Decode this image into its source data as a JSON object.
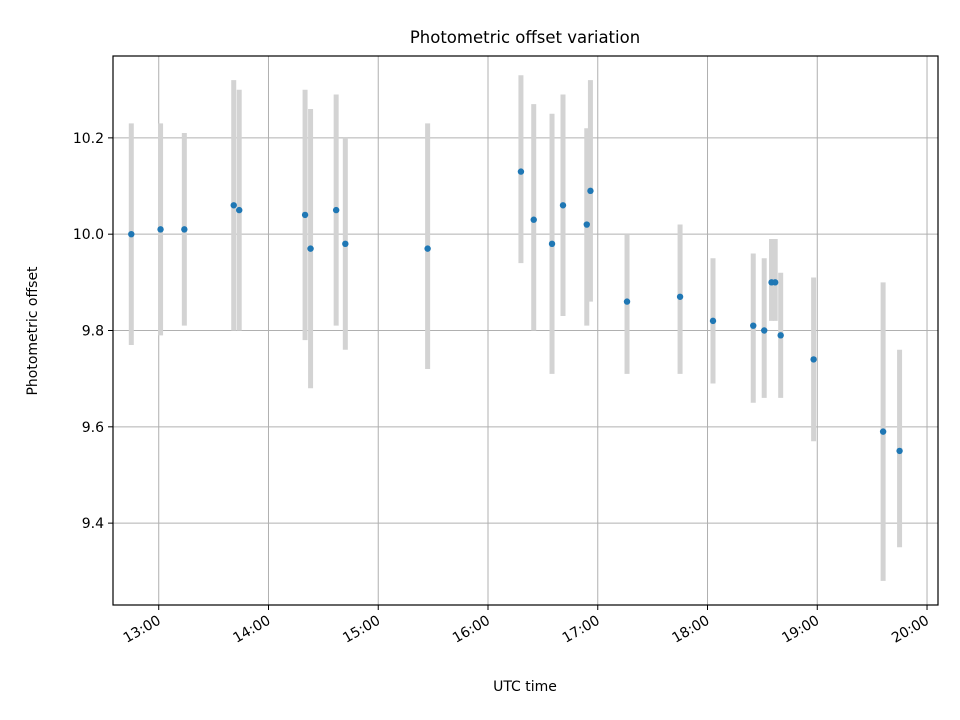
{
  "chart_data": {
    "type": "scatter",
    "title": "Photometric offset variation",
    "xlabel": "UTC time",
    "ylabel": "Photometric offset",
    "x_tick_labels": [
      "13:00",
      "14:00",
      "15:00",
      "16:00",
      "17:00",
      "18:00",
      "19:00",
      "20:00"
    ],
    "y_tick_labels": [
      "9.4",
      "9.6",
      "9.8",
      "10.0",
      "10.2"
    ],
    "xlim": [
      "12:35",
      "20:06"
    ],
    "ylim": [
      9.23,
      10.37
    ],
    "grid": true,
    "legend": "none",
    "series": [
      {
        "point_color": "#1f77b4",
        "errorbar_color": "#d3d3d3",
        "points": [
          {
            "x": "12:45",
            "y": 10.0,
            "yerr_low": 9.77,
            "yerr_high": 10.23
          },
          {
            "x": "13:01",
            "y": 10.01,
            "yerr_low": 9.79,
            "yerr_high": 10.23
          },
          {
            "x": "13:14",
            "y": 10.01,
            "yerr_low": 9.81,
            "yerr_high": 10.21
          },
          {
            "x": "13:41",
            "y": 10.06,
            "yerr_low": 9.8,
            "yerr_high": 10.32
          },
          {
            "x": "13:44",
            "y": 10.05,
            "yerr_low": 9.8,
            "yerr_high": 10.3
          },
          {
            "x": "14:20",
            "y": 10.04,
            "yerr_low": 9.78,
            "yerr_high": 10.3
          },
          {
            "x": "14:23",
            "y": 9.97,
            "yerr_low": 9.68,
            "yerr_high": 10.26
          },
          {
            "x": "14:37",
            "y": 10.05,
            "yerr_low": 9.81,
            "yerr_high": 10.29
          },
          {
            "x": "14:42",
            "y": 9.98,
            "yerr_low": 9.76,
            "yerr_high": 10.2
          },
          {
            "x": "15:27",
            "y": 9.97,
            "yerr_low": 9.72,
            "yerr_high": 10.23
          },
          {
            "x": "16:18",
            "y": 10.13,
            "yerr_low": 9.94,
            "yerr_high": 10.33
          },
          {
            "x": "16:25",
            "y": 10.03,
            "yerr_low": 9.8,
            "yerr_high": 10.27
          },
          {
            "x": "16:35",
            "y": 9.98,
            "yerr_low": 9.71,
            "yerr_high": 10.25
          },
          {
            "x": "16:41",
            "y": 10.06,
            "yerr_low": 9.83,
            "yerr_high": 10.29
          },
          {
            "x": "16:54",
            "y": 10.02,
            "yerr_low": 9.81,
            "yerr_high": 10.22
          },
          {
            "x": "16:56",
            "y": 10.09,
            "yerr_low": 9.86,
            "yerr_high": 10.32
          },
          {
            "x": "17:16",
            "y": 9.86,
            "yerr_low": 9.71,
            "yerr_high": 10.0
          },
          {
            "x": "17:45",
            "y": 9.87,
            "yerr_low": 9.71,
            "yerr_high": 10.02
          },
          {
            "x": "18:03",
            "y": 9.82,
            "yerr_low": 9.69,
            "yerr_high": 9.95
          },
          {
            "x": "18:25",
            "y": 9.81,
            "yerr_low": 9.65,
            "yerr_high": 9.96
          },
          {
            "x": "18:31",
            "y": 9.8,
            "yerr_low": 9.66,
            "yerr_high": 9.95
          },
          {
            "x": "18:35",
            "y": 9.9,
            "yerr_low": 9.82,
            "yerr_high": 9.99
          },
          {
            "x": "18:37",
            "y": 9.9,
            "yerr_low": 9.82,
            "yerr_high": 9.99
          },
          {
            "x": "18:40",
            "y": 9.79,
            "yerr_low": 9.66,
            "yerr_high": 9.92
          },
          {
            "x": "18:58",
            "y": 9.74,
            "yerr_low": 9.57,
            "yerr_high": 9.91
          },
          {
            "x": "19:36",
            "y": 9.59,
            "yerr_low": 9.28,
            "yerr_high": 9.9
          },
          {
            "x": "19:45",
            "y": 9.55,
            "yerr_low": 9.35,
            "yerr_high": 9.76
          }
        ]
      }
    ]
  }
}
